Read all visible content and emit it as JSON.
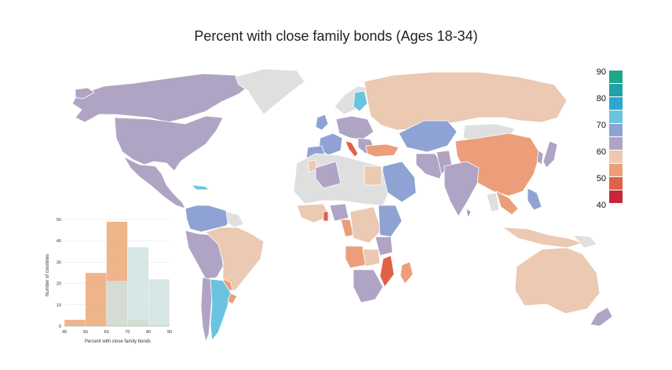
{
  "title": "Percent with close family bonds (Ages 18-34)",
  "colors": {
    "purple": "#b0a4c4",
    "peach": "#ebc9b2",
    "orange": "#ec9e7b",
    "red_orange": "#df6248",
    "blue": "#8ea3d3",
    "light_blue": "#69c4e1",
    "no_data": "#dfdfdf",
    "border": "#ffffff"
  },
  "legend": {
    "labels": [
      "90",
      "80",
      "70",
      "60",
      "50",
      "40"
    ],
    "swatches": [
      "#1fa78b",
      "#22a0a6",
      "#2aa8ce",
      "#69c4e1",
      "#8ea3d3",
      "#b0a4c4",
      "#ebc9b2",
      "#ec9e7b",
      "#df6248",
      "#c5263a"
    ]
  },
  "chart_data": {
    "type": "bar",
    "xlabel": "Percent with close family bonds",
    "ylabel": "Number of countries",
    "xticks": [
      40,
      50,
      60,
      70,
      80,
      90
    ],
    "yticks": [
      0,
      10,
      20,
      30,
      40,
      50
    ],
    "ylim": [
      0,
      50
    ],
    "series": [
      {
        "color": "#eba877",
        "bins": [
          [
            40,
            50,
            3
          ],
          [
            50,
            60,
            25
          ],
          [
            60,
            70,
            49
          ],
          [
            70,
            80,
            3
          ]
        ]
      },
      {
        "color": "#cfe3e1",
        "bins": [
          [
            60,
            70,
            21
          ],
          [
            70,
            80,
            37
          ],
          [
            80,
            90,
            22
          ]
        ]
      }
    ]
  }
}
